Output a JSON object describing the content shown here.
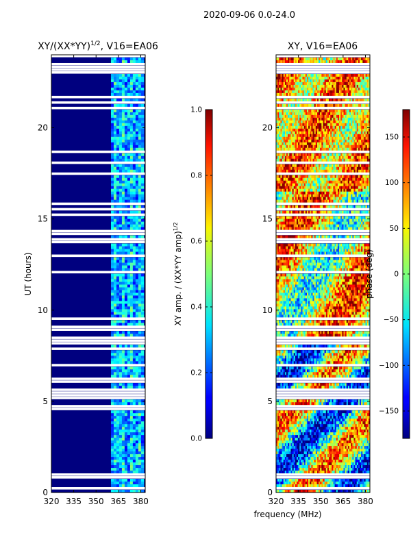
{
  "figure": {
    "suptitle": "2020-09-06 0.0-24.0",
    "shared_xlabel": "frequency (MHz)",
    "colors": {
      "panel_background": "#00007f",
      "flag_gap": "#ffffff",
      "colormap": "jet"
    }
  },
  "chart_data": [
    {
      "type": "heatmap",
      "title": "XY/(XX*YY)^1/2, V16=EA06",
      "title_main": "XY/(XX*YY)",
      "title_exp": "1/2",
      "title_tail": ", V16=EA06",
      "xlabel": "frequency (MHz)",
      "ylabel": "UT (hours)",
      "xlim": [
        320,
        383
      ],
      "ylim": [
        0,
        24
      ],
      "xticks": [
        "320",
        "335",
        "350",
        "365",
        "380"
      ],
      "yticks": [
        "0",
        "5",
        "10",
        "15",
        "20"
      ],
      "xtick_values": [
        320,
        335,
        350,
        365,
        380
      ],
      "ytick_values": [
        0,
        5,
        10,
        15,
        20
      ],
      "active_band_mhz": [
        360,
        382
      ],
      "colorbar": {
        "label_main": "XY amp. / (XX*YY amp)",
        "label_exp": "1/2",
        "range": [
          0.0,
          1.0
        ],
        "ticks": [
          "0.0",
          "0.2",
          "0.4",
          "0.6",
          "0.8",
          "1.0"
        ],
        "tick_values": [
          0.0,
          0.2,
          0.4,
          0.6,
          0.8,
          1.0
        ]
      }
    },
    {
      "type": "heatmap",
      "title": "XY, V16=EA06",
      "xlabel": "frequency (MHz)",
      "ylabel": "",
      "xlim": [
        320,
        383
      ],
      "ylim": [
        0,
        24
      ],
      "xticks": [
        "320",
        "335",
        "350",
        "365",
        "380"
      ],
      "yticks": [
        "0",
        "5",
        "10",
        "15",
        "20"
      ],
      "xtick_values": [
        320,
        335,
        350,
        365,
        380
      ],
      "ytick_values": [
        0,
        5,
        10,
        15,
        20
      ],
      "colorbar": {
        "label": "phase (deg)",
        "range": [
          -180,
          180
        ],
        "ticks": [
          "−150",
          "−100",
          "−50",
          "0",
          "50",
          "100",
          "150"
        ],
        "tick_values": [
          -150,
          -100,
          -50,
          0,
          50,
          100,
          150
        ]
      }
    }
  ]
}
